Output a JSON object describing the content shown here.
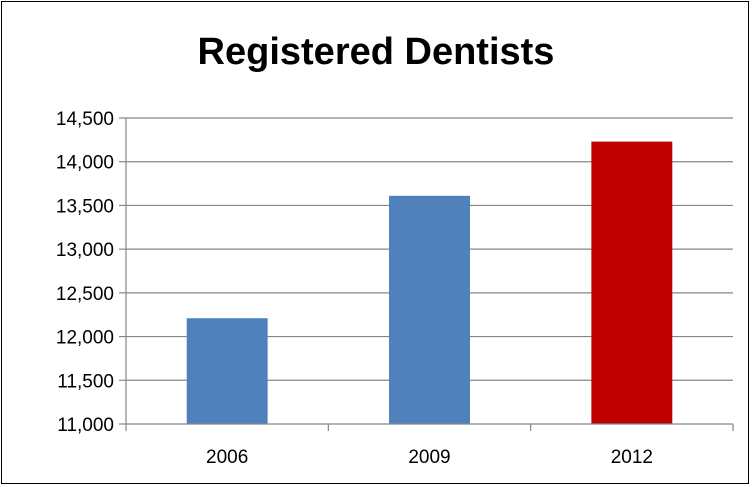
{
  "chart_data": {
    "type": "bar",
    "title": "Registered Dentists",
    "xlabel": "",
    "ylabel": "",
    "categories": [
      "2006",
      "2009",
      "2012"
    ],
    "values": [
      12210,
      13610,
      14230
    ],
    "ylim": [
      11000,
      14500
    ],
    "ytick_step": 500,
    "y_ticks": [
      "11,000",
      "11,500",
      "12,000",
      "12,500",
      "13,000",
      "13,500",
      "14,000",
      "14,500"
    ],
    "grid": true,
    "legend": "none",
    "bar_colors": [
      "#4f81bd",
      "#4f81bd",
      "#c00000"
    ]
  }
}
